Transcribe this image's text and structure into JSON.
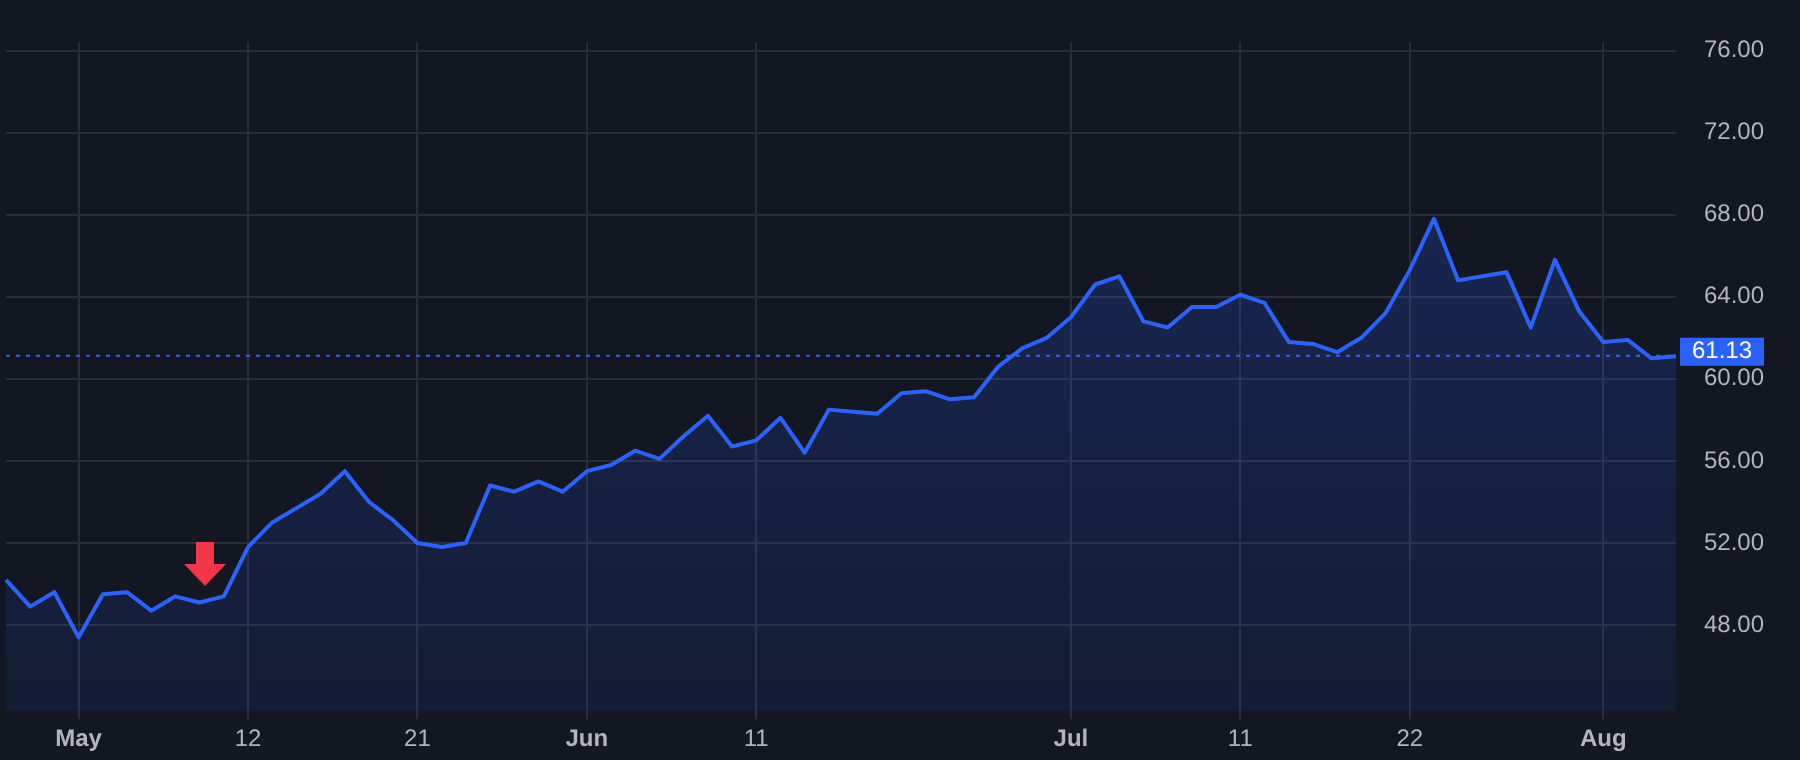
{
  "chart_data": {
    "type": "area",
    "categories": [
      null,
      null,
      null,
      "May",
      null,
      null,
      null,
      null,
      null,
      null,
      "12",
      null,
      null,
      null,
      null,
      null,
      null,
      "21",
      null,
      null,
      null,
      null,
      null,
      null,
      "Jun",
      null,
      null,
      null,
      null,
      null,
      null,
      "11",
      null,
      null,
      null,
      null,
      null,
      null,
      null,
      null,
      null,
      null,
      null,
      null,
      "Jul",
      null,
      null,
      null,
      null,
      null,
      null,
      "11",
      null,
      null,
      null,
      null,
      null,
      null,
      "22",
      null,
      null,
      null,
      null,
      null,
      null,
      null,
      "Aug",
      null,
      null,
      null
    ],
    "series": [
      {
        "color": "#2962ff",
        "values": [
          50.2,
          48.9,
          49.6,
          47.4,
          49.5,
          49.6,
          48.7,
          49.4,
          49.1,
          49.4,
          51.8,
          53.0,
          53.7,
          54.4,
          55.5,
          54.0,
          53.1,
          52.0,
          51.8,
          52.0,
          54.8,
          54.5,
          55.0,
          54.5,
          55.5,
          55.8,
          56.5,
          56.1,
          57.2,
          58.2,
          56.7,
          57.0,
          58.1,
          56.4,
          58.5,
          58.4,
          58.3,
          59.3,
          59.4,
          59.0,
          59.1,
          60.6,
          61.5,
          62.0,
          63.0,
          64.6,
          65.0,
          62.8,
          62.5,
          63.5,
          63.5,
          64.1,
          63.7,
          61.8,
          61.7,
          61.3,
          62.0,
          63.2,
          65.3,
          67.8,
          64.8,
          65.0,
          65.2,
          62.5,
          65.8,
          63.3,
          61.8,
          61.9,
          61.0,
          61.1
        ]
      }
    ],
    "ylim": [
      43.8,
      76.4
    ],
    "yticks": [
      {
        "value": 48,
        "label": "48.00"
      },
      {
        "value": 52,
        "label": "52.00"
      },
      {
        "value": 56,
        "label": "56.00"
      },
      {
        "value": 60,
        "label": "60.00"
      },
      {
        "value": 64,
        "label": "64.00"
      },
      {
        "value": 68,
        "label": "68.00"
      },
      {
        "value": 72,
        "label": "72.00"
      },
      {
        "value": 76,
        "label": "76.00"
      }
    ],
    "ref_lines": [
      {
        "axis": "y",
        "value": 61.13,
        "label": "61.13",
        "color": "#2962ff",
        "line_style": "dotted"
      }
    ],
    "grid": true,
    "legend": false,
    "marker": "none",
    "line_style": "solid"
  }
}
